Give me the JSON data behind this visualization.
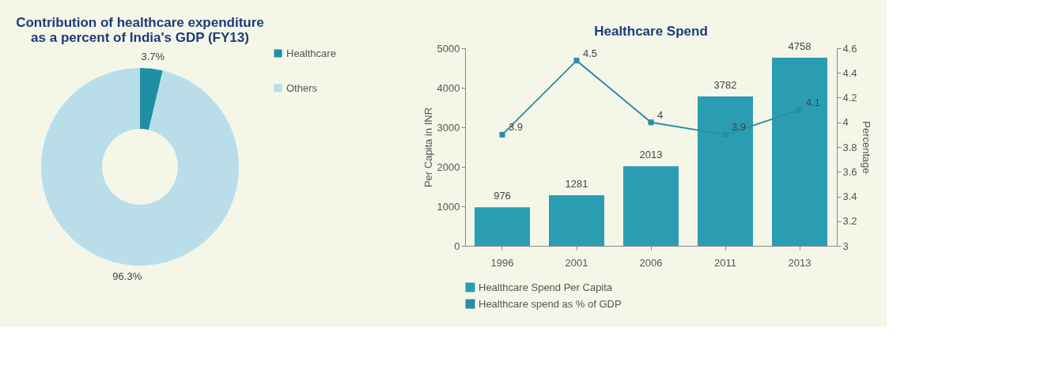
{
  "chart_data": [
    {
      "type": "donut",
      "title": [
        "Contribution of healthcare expenditure",
        "as a percent of India's GDP (FY13)"
      ],
      "categories": [
        "Healthcare",
        "Others"
      ],
      "values": [
        3.7,
        96.3
      ],
      "colors": [
        "#1f8fa6",
        "#b9dde9"
      ],
      "value_labels": [
        "3.7%",
        "96.3%"
      ],
      "legend": "right"
    },
    {
      "type": "bar",
      "title": "Healthcare Spend",
      "ylabel": "Per Capita in INR",
      "y2label": "Percentage",
      "categories": [
        "1996",
        "2001",
        "2006",
        "2011",
        "2013"
      ],
      "series": [
        {
          "name": "Healthcare Spend Per Capita",
          "type": "bar",
          "color": "#2b9db3",
          "values": [
            976,
            1281,
            2013,
            3782,
            4758
          ]
        },
        {
          "name": "Healthcare spend as % of GDP",
          "type": "line",
          "axis": "y2",
          "color": "#268ea5",
          "values": [
            3.9,
            4.5,
            4,
            3.9,
            4.1
          ]
        }
      ],
      "ylim": [
        0,
        5000
      ],
      "yticks": [
        0,
        1000,
        2000,
        3000,
        4000,
        5000
      ],
      "y2lim": [
        3,
        4.6
      ],
      "y2ticks": [
        3,
        3.2,
        3.4,
        3.6,
        3.8,
        4,
        4.2,
        4.4,
        4.6
      ],
      "data_labels": true,
      "marker": "square",
      "legend": "bottom",
      "grid": false
    }
  ]
}
